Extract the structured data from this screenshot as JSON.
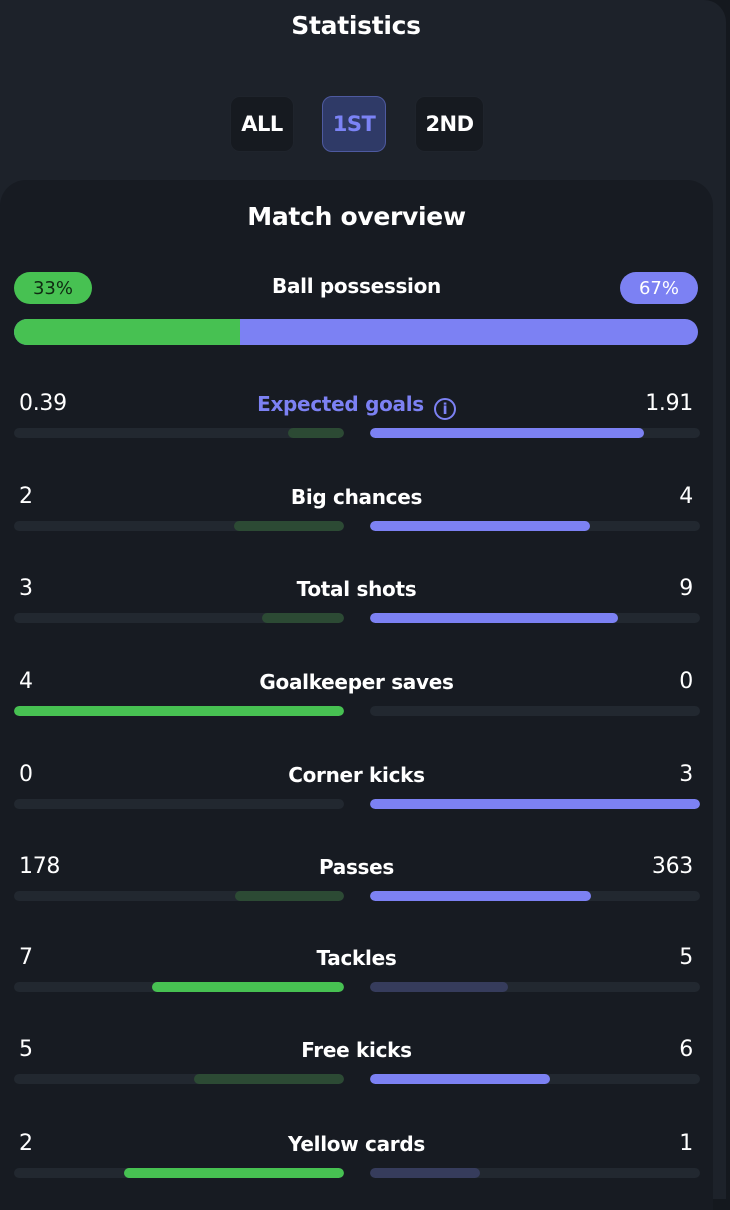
{
  "header": {
    "title": "Statistics"
  },
  "period_tabs": [
    {
      "label": "ALL",
      "active": false
    },
    {
      "label": "1ST",
      "active": true
    },
    {
      "label": "2ND",
      "active": false
    }
  ],
  "overview": {
    "title": "Match overview",
    "possession": {
      "label": "Ball possession",
      "home": "33%",
      "away": "67%",
      "home_fraction": 0.33
    },
    "stats": [
      {
        "label": "Expected goals",
        "home": "0.39",
        "away": "1.91",
        "home_num": 0.39,
        "away_num": 1.91,
        "info": true
      },
      {
        "label": "Big chances",
        "home": "2",
        "away": "4",
        "home_num": 2,
        "away_num": 4
      },
      {
        "label": "Total shots",
        "home": "3",
        "away": "9",
        "home_num": 3,
        "away_num": 9
      },
      {
        "label": "Goalkeeper saves",
        "home": "4",
        "away": "0",
        "home_num": 4,
        "away_num": 0
      },
      {
        "label": "Corner kicks",
        "home": "0",
        "away": "3",
        "home_num": 0,
        "away_num": 3
      },
      {
        "label": "Passes",
        "home": "178",
        "away": "363",
        "home_num": 178,
        "away_num": 363
      },
      {
        "label": "Tackles",
        "home": "7",
        "away": "5",
        "home_num": 7,
        "away_num": 5
      },
      {
        "label": "Free kicks",
        "home": "5",
        "away": "6",
        "home_num": 5,
        "away_num": 6
      },
      {
        "label": "Yellow cards",
        "home": "2",
        "away": "1",
        "home_num": 2,
        "away_num": 1
      }
    ]
  },
  "colors": {
    "home": "#47c152",
    "away": "#7c81f3"
  }
}
